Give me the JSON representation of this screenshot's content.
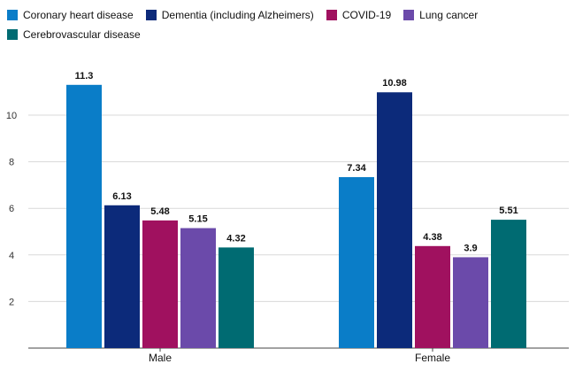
{
  "chart_data": {
    "type": "bar",
    "categories": [
      "Male",
      "Female"
    ],
    "series": [
      {
        "name": "Coronary heart disease",
        "color": "#0a7dc8",
        "values": [
          11.3,
          7.34
        ],
        "labels": [
          "11.3",
          "7.34"
        ]
      },
      {
        "name": "Dementia (including Alzheimers)",
        "color": "#0c2a7a",
        "values": [
          6.13,
          10.98
        ],
        "labels": [
          "6.13",
          "10.98"
        ]
      },
      {
        "name": "COVID-19",
        "color": "#a0115f",
        "values": [
          5.48,
          4.38
        ],
        "labels": [
          "5.48",
          "4.38"
        ]
      },
      {
        "name": "Lung cancer",
        "color": "#6b4aaa",
        "values": [
          5.15,
          3.9
        ],
        "labels": [
          "5.15",
          "3.9"
        ]
      },
      {
        "name": "Cerebrovascular disease",
        "color": "#006b72",
        "values": [
          4.32,
          5.51
        ],
        "labels": [
          "4.32",
          "5.51"
        ]
      }
    ],
    "y_ticks": [
      2,
      4,
      6,
      8,
      10
    ],
    "ylim": [
      0,
      12
    ],
    "grid": true,
    "legend_position": "top-left",
    "title": "",
    "xlabel": "",
    "ylabel": ""
  }
}
